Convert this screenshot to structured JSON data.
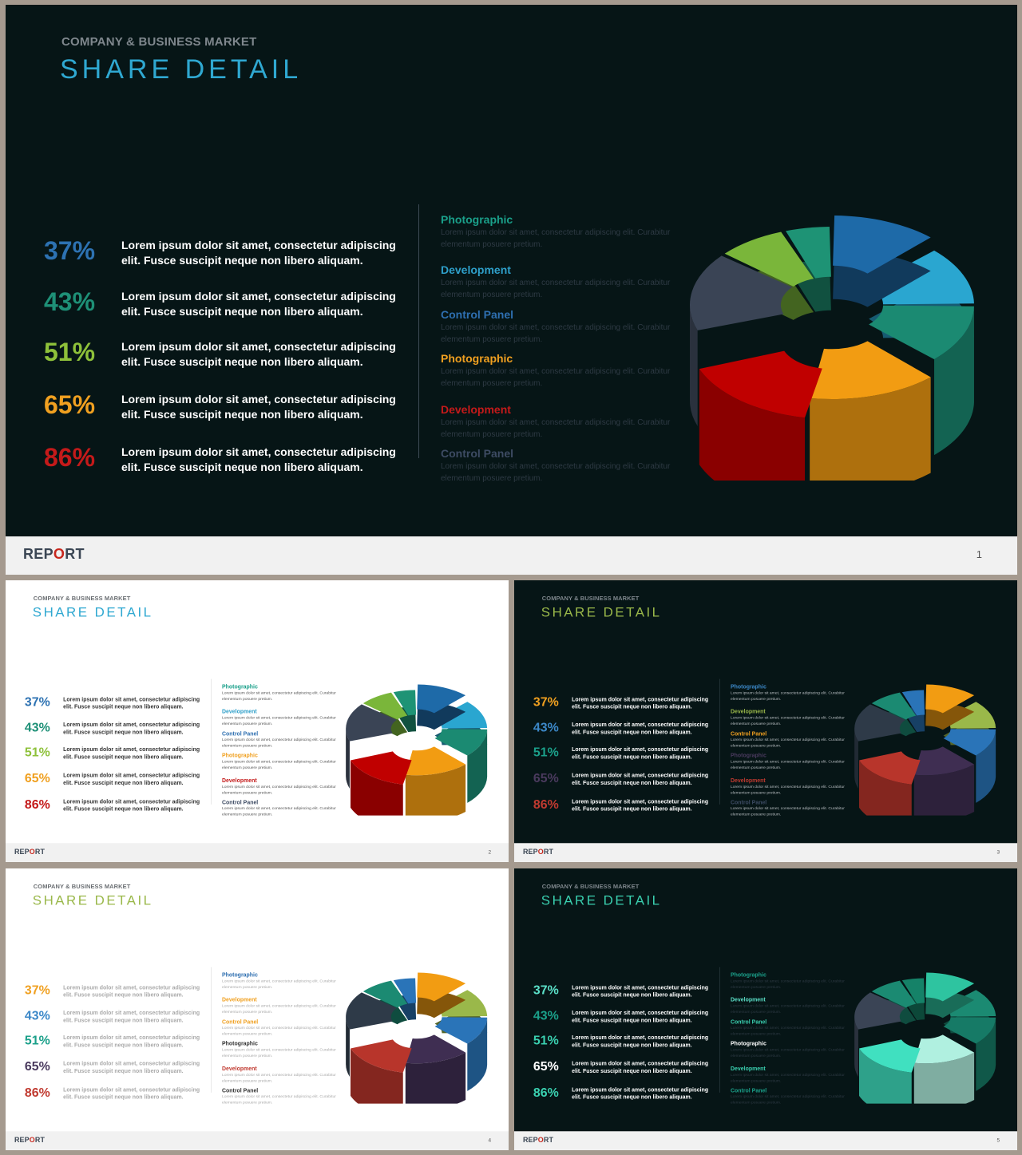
{
  "brand": {
    "pre": "REP",
    "accent": "O",
    "post": "RT"
  },
  "subtitle": "COMPANY & BUSINESS MARKET",
  "title": "SHARE DETAIL",
  "lorem_line": "Lorem ipsum dolor sit amet, consectetur adipiscing elit. Fusce suscipit neque non libero aliquam.",
  "lorem_small": "Lorem ipsum dolor sit amet, consectetur adipiscing elit. Curabitur elementum posuere pretium.",
  "percentages": [
    "37%",
    "43%",
    "51%",
    "65%",
    "86%"
  ],
  "categories": [
    "Photographic",
    "Development",
    "Control Panel",
    "Photographic",
    "Development",
    "Control Panel"
  ],
  "slides": [
    {
      "page": "1",
      "theme": "dark",
      "title_color": "#2fa8d1",
      "pct_colors": [
        "#2d72b2",
        "#1e9077",
        "#8ec13a",
        "#f0a020",
        "#c41a1a"
      ],
      "pct_text_color": "#ffffff",
      "label_colors": [
        "#1aa08a",
        "#2e9fc9",
        "#2e6fb0",
        "#f0a020",
        "#c41a1a",
        "#3d4b63"
      ],
      "desc_color": "#2e3a44",
      "segments": [
        "#1e6aa8",
        "#2aa6d0",
        "#1b8a72",
        "#f29c12",
        "#c00000",
        "#3a4455",
        "#7ab63a",
        "#1e9375"
      ]
    },
    {
      "page": "2",
      "theme": "light",
      "title_color": "#2fa8d1",
      "pct_colors": [
        "#2d72b2",
        "#1e9077",
        "#8ec13a",
        "#f0a020",
        "#c41a1a"
      ],
      "pct_text_color": "#333333",
      "label_colors": [
        "#1aa08a",
        "#2e9fc9",
        "#2e6fb0",
        "#f0a020",
        "#c41a1a",
        "#3d4b63"
      ],
      "desc_color": "#555555",
      "segments": [
        "#1e6aa8",
        "#2aa6d0",
        "#1b8a72",
        "#f29c12",
        "#c00000",
        "#3a4455",
        "#7ab63a",
        "#1e9375"
      ]
    },
    {
      "page": "3",
      "theme": "dark",
      "title_color": "#9ab84a",
      "pct_colors": [
        "#f0a020",
        "#3c88c8",
        "#1ba08a",
        "#4a3a5e",
        "#c03a30"
      ],
      "pct_text_color": "#ffffff",
      "label_colors": [
        "#3c88c8",
        "#9ab84a",
        "#f0a020",
        "#4a3a5e",
        "#c03a30",
        "#3d4b63"
      ],
      "desc_color": "#b8bec2",
      "segments": [
        "#f29c12",
        "#9ab84a",
        "#2a74b8",
        "#3f2e52",
        "#b8352b",
        "#2e3a48",
        "#1b8a72",
        "#2a74b8"
      ]
    },
    {
      "page": "4",
      "theme": "light",
      "title_color": "#9ab84a",
      "pct_colors": [
        "#f0a020",
        "#3c88c8",
        "#1ba08a",
        "#4a3a5e",
        "#c03a30"
      ],
      "pct_text_color": "#aaaaaa",
      "label_colors": [
        "#2e6fb0",
        "#f0a020",
        "#f0a020",
        "#333333",
        "#c03a30",
        "#333333"
      ],
      "desc_color": "#aaaaaa",
      "segments": [
        "#f29c12",
        "#9ab84a",
        "#2a74b8",
        "#3f2e52",
        "#b8352b",
        "#2e3a48",
        "#1b8a72",
        "#2a74b8"
      ]
    },
    {
      "page": "5",
      "theme": "dark",
      "title_color": "#3ad0b0",
      "pct_colors": [
        "#5be0c8",
        "#1ba08a",
        "#3ad0b0",
        "#ffffff",
        "#3ad0b0"
      ],
      "pct_text_color": "#ffffff",
      "label_colors": [
        "#1ba08a",
        "#5be0c8",
        "#3ad0b0",
        "#ffffff",
        "#3ad0b0",
        "#1ba08a"
      ],
      "desc_color": "#2e3a44",
      "segments": [
        "#2ec4a0",
        "#1b8a72",
        "#167a66",
        "#b0f0e0",
        "#40e0c0",
        "#3a4455",
        "#1b8a72",
        "#158268"
      ]
    }
  ]
}
